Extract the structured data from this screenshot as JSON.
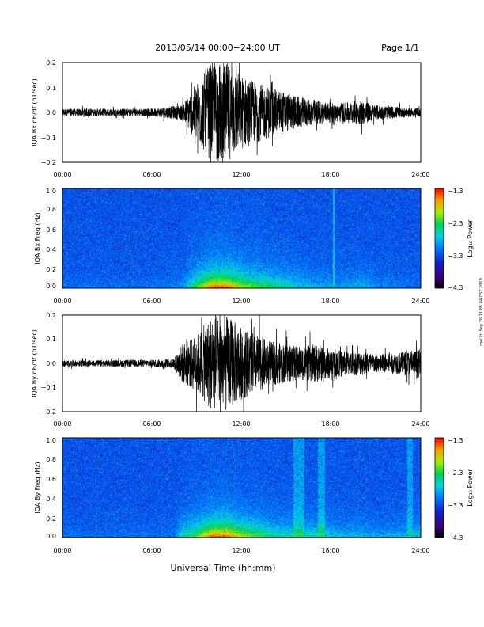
{
  "header": {
    "title": "2013/05/14  00:00−24:00 UT",
    "page": "Page 1/1"
  },
  "footer": {
    "xlabel": "Universal Time (hh:mm)",
    "side_note": "mel Fri Sep 20 11:05:04 CST 2019"
  },
  "colorbar": {
    "label": "Log₁₀ Power",
    "ticks": [
      "−1.3",
      "−2.3",
      "−3.3",
      "−4.3"
    ],
    "range": [
      -4.3,
      -1.3
    ]
  },
  "chart_data": [
    {
      "type": "line",
      "ylabel": "IQA Bx dB/dt (nT/sec)",
      "xlim": [
        0,
        24
      ],
      "ylim": [
        -0.2,
        0.2
      ],
      "x_ticks": [
        "00:00",
        "06:00",
        "12:00",
        "18:00",
        "24:00"
      ],
      "y_ticks": [
        "0.2",
        "0.1",
        "0.0",
        "−0.1",
        "−0.2"
      ],
      "envelope": {
        "hours": [
          0,
          6,
          8,
          9,
          10,
          11,
          12,
          13,
          14,
          15,
          16,
          17,
          18,
          19,
          20,
          21,
          22,
          23,
          24
        ],
        "amplitude": [
          0.015,
          0.015,
          0.03,
          0.12,
          0.2,
          0.2,
          0.15,
          0.12,
          0.1,
          0.08,
          0.06,
          0.05,
          0.04,
          0.04,
          0.05,
          0.03,
          0.025,
          0.02,
          0.015
        ]
      }
    },
    {
      "type": "heatmap",
      "ylabel": "IQA Bx Freq (Hz)",
      "xlim": [
        0,
        24
      ],
      "ylim": [
        0,
        1
      ],
      "x_ticks": [
        "00:00",
        "06:00",
        "12:00",
        "18:00",
        "24:00"
      ],
      "y_ticks": [
        "1.0",
        "0.8",
        "0.6",
        "0.4",
        "0.2",
        "0.0"
      ],
      "zlabel": "Log₁₀ Power",
      "zlim": [
        -4.3,
        -1.3
      ]
    },
    {
      "type": "line",
      "ylabel": "IQA By dB/dt (nT/sec)",
      "xlim": [
        0,
        24
      ],
      "ylim": [
        -0.2,
        0.2
      ],
      "x_ticks": [
        "00:00",
        "06:00",
        "12:00",
        "18:00",
        "24:00"
      ],
      "y_ticks": [
        "0.2",
        "0.1",
        "0.0",
        "−0.1",
        "−0.2"
      ],
      "envelope": {
        "hours": [
          0,
          6,
          7.5,
          8,
          9,
          10,
          11,
          12,
          13,
          14,
          15,
          16,
          17,
          18,
          19,
          20,
          21,
          22,
          23,
          24
        ],
        "amplitude": [
          0.012,
          0.015,
          0.02,
          0.08,
          0.12,
          0.2,
          0.2,
          0.15,
          0.12,
          0.09,
          0.08,
          0.07,
          0.08,
          0.06,
          0.05,
          0.05,
          0.04,
          0.04,
          0.05,
          0.06
        ]
      }
    },
    {
      "type": "heatmap",
      "ylabel": "IQA By Freq (Hz)",
      "xlim": [
        0,
        24
      ],
      "ylim": [
        0,
        1
      ],
      "x_ticks": [
        "00:00",
        "06:00",
        "12:00",
        "18:00",
        "24:00"
      ],
      "y_ticks": [
        "1.0",
        "0.8",
        "0.6",
        "0.4",
        "0.2",
        "0.0"
      ],
      "zlabel": "Log₁₀ Power",
      "zlim": [
        -4.3,
        -1.3
      ]
    }
  ]
}
